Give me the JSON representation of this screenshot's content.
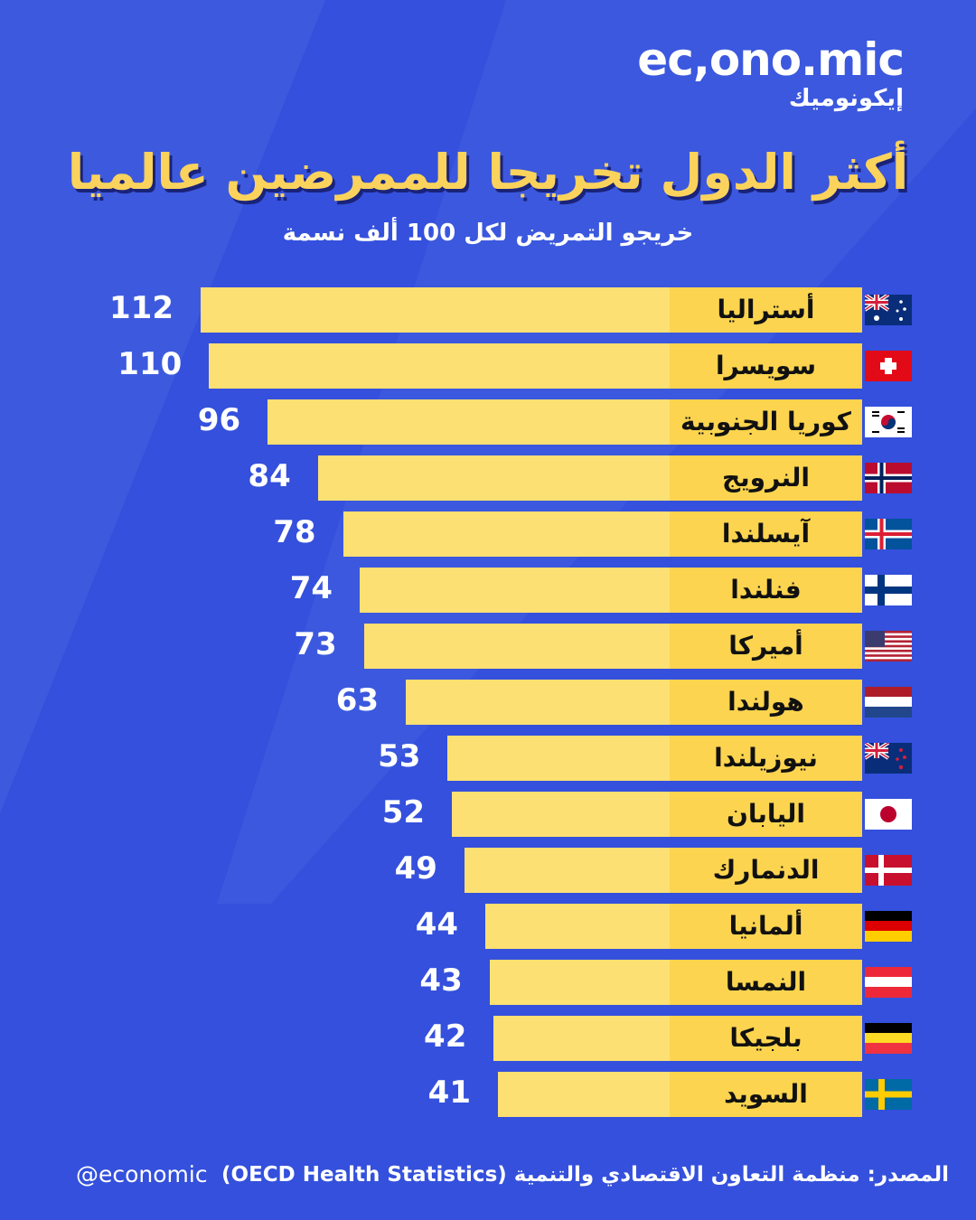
{
  "brand": {
    "latin": "ec,ono.mic",
    "arabic": "إيكونوميك"
  },
  "footer": {
    "source": "المصدر: منظمة التعاون الاقتصادي والتنمية (OECD Health Statistics)",
    "handle": "@economic"
  },
  "colors": {
    "background": "#3450dc",
    "bar": "#fde073",
    "label": "#fcd44f",
    "title": "#fbd35c"
  },
  "chart_data": {
    "type": "bar",
    "orientation": "horizontal",
    "title": "أكثر الدول تخريجا للممرضين عالميا",
    "subtitle": "خريجو التمريض لكل 100 ألف نسمة",
    "categories": [
      "أستراليا",
      "سويسرا",
      "كوريا الجنوبية",
      "النرويج",
      "آيسلندا",
      "فنلندا",
      "أميركا",
      "هولندا",
      "نيوزيلندا",
      "اليابان",
      "الدنمارك",
      "ألمانيا",
      "النمسا",
      "بلجيكا",
      "السويد"
    ],
    "values": [
      112,
      110,
      96,
      84,
      78,
      74,
      73,
      63,
      53,
      52,
      49,
      44,
      43,
      42,
      41
    ],
    "flags": [
      "australia-flag",
      "switzerland-flag",
      "south-korea-flag",
      "norway-flag",
      "iceland-flag",
      "finland-flag",
      "usa-flag",
      "netherlands-flag",
      "new-zealand-flag",
      "japan-flag",
      "denmark-flag",
      "germany-flag",
      "austria-flag",
      "belgium-flag",
      "sweden-flag"
    ],
    "sorted": "descending"
  }
}
